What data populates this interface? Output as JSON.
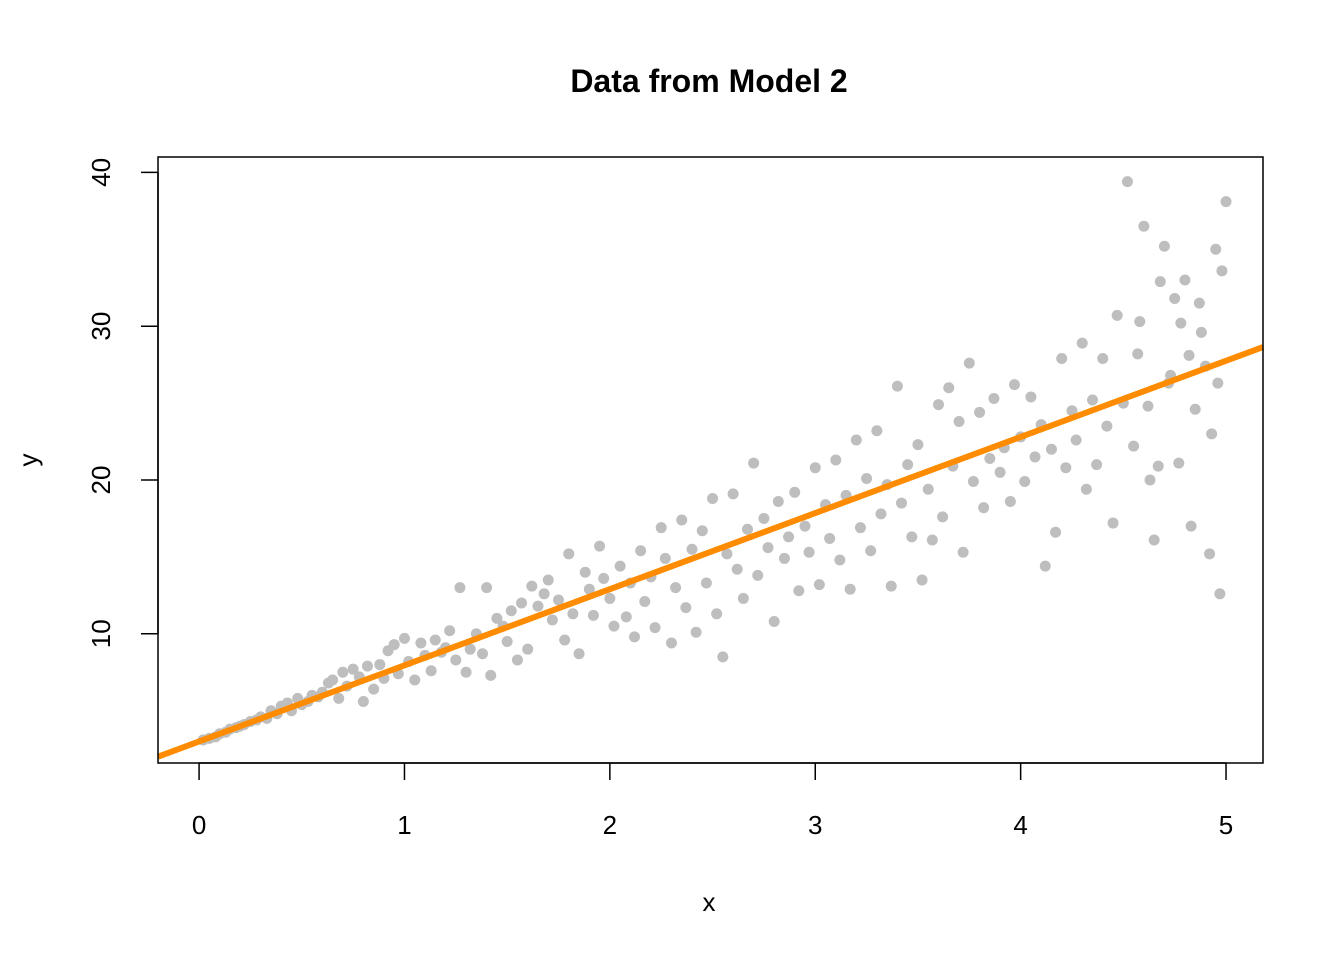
{
  "chart_data": {
    "type": "scatter",
    "title": "Data from Model 2",
    "xlabel": "x",
    "ylabel": "y",
    "xlim": [
      -0.2,
      5.18
    ],
    "ylim": [
      1.6,
      41
    ],
    "x_ticks": [
      0,
      1,
      2,
      3,
      4,
      5
    ],
    "x_tick_labels": [
      "0",
      "1",
      "2",
      "3",
      "4",
      "5"
    ],
    "y_ticks": [
      10,
      20,
      30,
      40
    ],
    "y_tick_labels": [
      "10",
      "20",
      "30",
      "40"
    ],
    "grid": false,
    "point_color": "#bebebe",
    "line_color": "#ff8c00",
    "fit_line": {
      "intercept": 3.0,
      "slope": 4.95
    },
    "points": [
      [
        0.02,
        3.1
      ],
      [
        0.05,
        3.2
      ],
      [
        0.08,
        3.3
      ],
      [
        0.1,
        3.5
      ],
      [
        0.13,
        3.6
      ],
      [
        0.15,
        3.8
      ],
      [
        0.18,
        3.9
      ],
      [
        0.2,
        4.0
      ],
      [
        0.22,
        4.1
      ],
      [
        0.25,
        4.3
      ],
      [
        0.28,
        4.4
      ],
      [
        0.3,
        4.6
      ],
      [
        0.33,
        4.5
      ],
      [
        0.35,
        5.0
      ],
      [
        0.38,
        4.8
      ],
      [
        0.4,
        5.3
      ],
      [
        0.43,
        5.5
      ],
      [
        0.45,
        5.0
      ],
      [
        0.48,
        5.8
      ],
      [
        0.5,
        5.4
      ],
      [
        0.53,
        5.6
      ],
      [
        0.55,
        6.0
      ],
      [
        0.58,
        5.9
      ],
      [
        0.6,
        6.2
      ],
      [
        0.63,
        6.8
      ],
      [
        0.65,
        7.0
      ],
      [
        0.68,
        5.8
      ],
      [
        0.7,
        7.5
      ],
      [
        0.72,
        6.6
      ],
      [
        0.75,
        7.7
      ],
      [
        0.78,
        7.2
      ],
      [
        0.8,
        5.6
      ],
      [
        0.82,
        7.9
      ],
      [
        0.85,
        6.4
      ],
      [
        0.88,
        8.0
      ],
      [
        0.9,
        7.1
      ],
      [
        0.92,
        8.9
      ],
      [
        0.95,
        9.3
      ],
      [
        0.97,
        7.4
      ],
      [
        1.0,
        9.7
      ],
      [
        1.02,
        8.2
      ],
      [
        1.05,
        7.0
      ],
      [
        1.08,
        9.4
      ],
      [
        1.1,
        8.6
      ],
      [
        1.13,
        7.6
      ],
      [
        1.15,
        9.6
      ],
      [
        1.18,
        8.8
      ],
      [
        1.2,
        9.1
      ],
      [
        1.22,
        10.2
      ],
      [
        1.25,
        8.3
      ],
      [
        1.27,
        13.0
      ],
      [
        1.3,
        7.5
      ],
      [
        1.32,
        9.0
      ],
      [
        1.35,
        10.0
      ],
      [
        1.38,
        8.7
      ],
      [
        1.4,
        13.0
      ],
      [
        1.42,
        7.3
      ],
      [
        1.45,
        11.0
      ],
      [
        1.48,
        10.5
      ],
      [
        1.5,
        9.5
      ],
      [
        1.52,
        11.5
      ],
      [
        1.55,
        8.3
      ],
      [
        1.57,
        12.0
      ],
      [
        1.6,
        9.0
      ],
      [
        1.62,
        13.1
      ],
      [
        1.65,
        11.8
      ],
      [
        1.68,
        12.6
      ],
      [
        1.7,
        13.5
      ],
      [
        1.72,
        10.9
      ],
      [
        1.75,
        12.2
      ],
      [
        1.78,
        9.6
      ],
      [
        1.8,
        15.2
      ],
      [
        1.82,
        11.3
      ],
      [
        1.85,
        8.7
      ],
      [
        1.88,
        14.0
      ],
      [
        1.9,
        12.9
      ],
      [
        1.92,
        11.2
      ],
      [
        1.95,
        15.7
      ],
      [
        1.97,
        13.6
      ],
      [
        2.0,
        12.3
      ],
      [
        2.02,
        10.5
      ],
      [
        2.05,
        14.4
      ],
      [
        2.08,
        11.1
      ],
      [
        2.1,
        13.3
      ],
      [
        2.12,
        9.8
      ],
      [
        2.15,
        15.4
      ],
      [
        2.17,
        12.1
      ],
      [
        2.2,
        13.7
      ],
      [
        2.22,
        10.4
      ],
      [
        2.25,
        16.9
      ],
      [
        2.27,
        14.9
      ],
      [
        2.3,
        9.4
      ],
      [
        2.32,
        13.0
      ],
      [
        2.35,
        17.4
      ],
      [
        2.37,
        11.7
      ],
      [
        2.4,
        15.5
      ],
      [
        2.42,
        10.1
      ],
      [
        2.45,
        16.7
      ],
      [
        2.47,
        13.3
      ],
      [
        2.5,
        18.8
      ],
      [
        2.52,
        11.3
      ],
      [
        2.55,
        8.5
      ],
      [
        2.57,
        15.2
      ],
      [
        2.6,
        19.1
      ],
      [
        2.62,
        14.2
      ],
      [
        2.65,
        12.3
      ],
      [
        2.67,
        16.8
      ],
      [
        2.7,
        21.1
      ],
      [
        2.72,
        13.8
      ],
      [
        2.75,
        17.5
      ],
      [
        2.77,
        15.6
      ],
      [
        2.8,
        10.8
      ],
      [
        2.82,
        18.6
      ],
      [
        2.85,
        14.9
      ],
      [
        2.87,
        16.3
      ],
      [
        2.9,
        19.2
      ],
      [
        2.92,
        12.8
      ],
      [
        2.95,
        17.0
      ],
      [
        2.97,
        15.3
      ],
      [
        3.0,
        20.8
      ],
      [
        3.02,
        13.2
      ],
      [
        3.05,
        18.4
      ],
      [
        3.07,
        16.2
      ],
      [
        3.1,
        21.3
      ],
      [
        3.12,
        14.8
      ],
      [
        3.15,
        19.0
      ],
      [
        3.17,
        12.9
      ],
      [
        3.2,
        22.6
      ],
      [
        3.22,
        16.9
      ],
      [
        3.25,
        20.1
      ],
      [
        3.27,
        15.4
      ],
      [
        3.3,
        23.2
      ],
      [
        3.32,
        17.8
      ],
      [
        3.35,
        19.7
      ],
      [
        3.37,
        13.1
      ],
      [
        3.4,
        26.1
      ],
      [
        3.42,
        18.5
      ],
      [
        3.45,
        21.0
      ],
      [
        3.47,
        16.3
      ],
      [
        3.5,
        22.3
      ],
      [
        3.52,
        13.5
      ],
      [
        3.55,
        19.4
      ],
      [
        3.57,
        16.1
      ],
      [
        3.6,
        24.9
      ],
      [
        3.62,
        17.6
      ],
      [
        3.65,
        26.0
      ],
      [
        3.67,
        20.9
      ],
      [
        3.7,
        23.8
      ],
      [
        3.72,
        15.3
      ],
      [
        3.75,
        27.6
      ],
      [
        3.77,
        19.9
      ],
      [
        3.8,
        24.4
      ],
      [
        3.82,
        18.2
      ],
      [
        3.85,
        21.4
      ],
      [
        3.87,
        25.3
      ],
      [
        3.9,
        20.5
      ],
      [
        3.92,
        22.1
      ],
      [
        3.95,
        18.6
      ],
      [
        3.97,
        26.2
      ],
      [
        4.0,
        22.8
      ],
      [
        4.02,
        19.9
      ],
      [
        4.05,
        25.4
      ],
      [
        4.07,
        21.5
      ],
      [
        4.1,
        23.6
      ],
      [
        4.12,
        14.4
      ],
      [
        4.15,
        22.0
      ],
      [
        4.17,
        16.6
      ],
      [
        4.2,
        27.9
      ],
      [
        4.22,
        20.8
      ],
      [
        4.25,
        24.5
      ],
      [
        4.27,
        22.6
      ],
      [
        4.3,
        28.9
      ],
      [
        4.32,
        19.4
      ],
      [
        4.35,
        25.2
      ],
      [
        4.37,
        21.0
      ],
      [
        4.4,
        27.9
      ],
      [
        4.42,
        23.5
      ],
      [
        4.45,
        17.2
      ],
      [
        4.47,
        30.7
      ],
      [
        4.5,
        25.0
      ],
      [
        4.52,
        39.4
      ],
      [
        4.55,
        22.2
      ],
      [
        4.57,
        28.2
      ],
      [
        4.6,
        36.5
      ],
      [
        4.62,
        24.8
      ],
      [
        4.65,
        16.1
      ],
      [
        4.67,
        20.9
      ],
      [
        4.7,
        35.2
      ],
      [
        4.72,
        26.3
      ],
      [
        4.75,
        31.8
      ],
      [
        4.77,
        21.1
      ],
      [
        4.8,
        33.0
      ],
      [
        4.82,
        28.1
      ],
      [
        4.85,
        24.6
      ],
      [
        4.87,
        31.5
      ],
      [
        4.9,
        27.4
      ],
      [
        4.92,
        15.2
      ],
      [
        4.95,
        35.0
      ],
      [
        4.97,
        12.6
      ],
      [
        5.0,
        38.1
      ],
      [
        4.58,
        30.3
      ],
      [
        4.63,
        20.0
      ],
      [
        4.68,
        32.9
      ],
      [
        4.73,
        26.8
      ],
      [
        4.78,
        30.2
      ],
      [
        4.83,
        17.0
      ],
      [
        4.88,
        29.6
      ],
      [
        4.93,
        23.0
      ],
      [
        4.98,
        33.6
      ],
      [
        4.96,
        26.3
      ]
    ]
  }
}
